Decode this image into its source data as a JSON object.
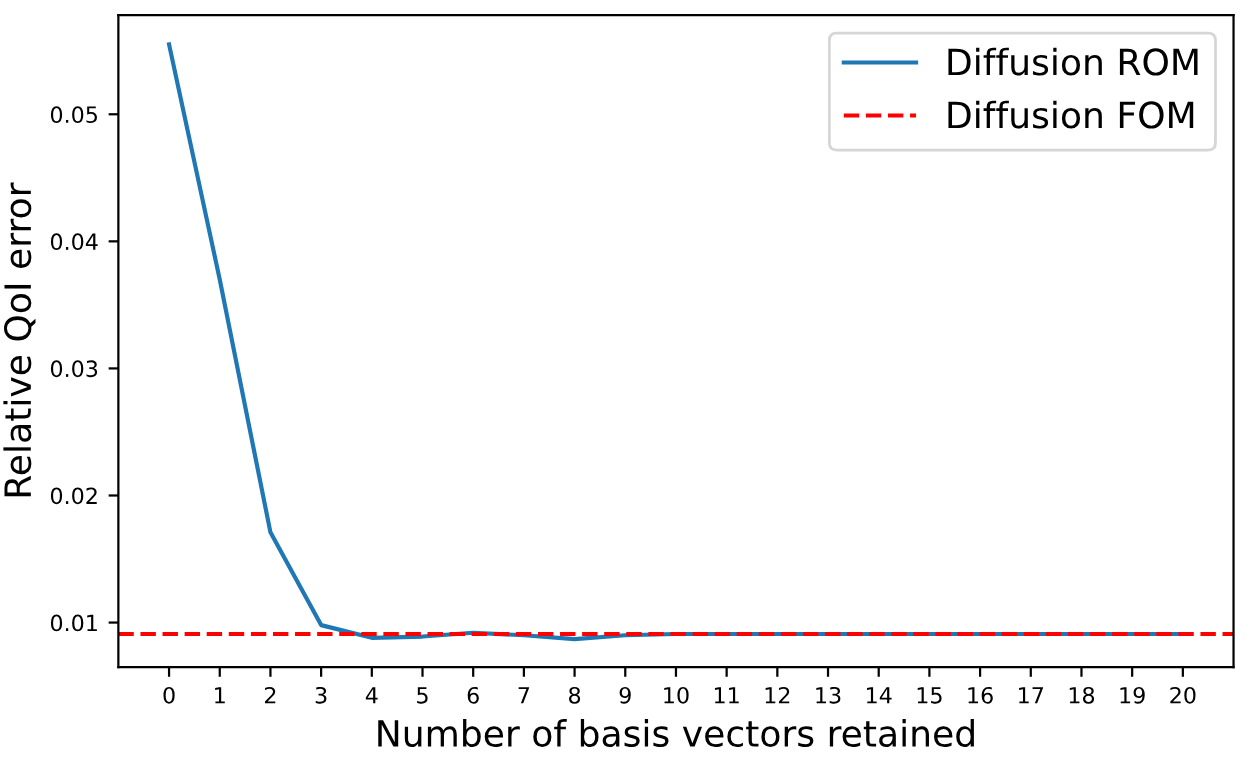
{
  "chart_data": {
    "type": "line",
    "xlabel": "Number of basis vectors retained",
    "ylabel": "Relative QoI error",
    "x": [
      0,
      1,
      2,
      3,
      4,
      5,
      6,
      7,
      8,
      9,
      10,
      11,
      12,
      13,
      14,
      15,
      16,
      17,
      18,
      19,
      20
    ],
    "series": [
      {
        "name": "Diffusion ROM",
        "color": "#1f77b4",
        "values": [
          0.0555,
          0.037,
          0.0171,
          0.0098,
          0.0088,
          0.0089,
          0.0092,
          0.009,
          0.0087,
          0.009,
          0.0091,
          0.0091,
          0.0091,
          0.0091,
          0.0091,
          0.0091,
          0.0091,
          0.0091,
          0.0091,
          0.0091,
          0.0091
        ]
      }
    ],
    "ref_lines": [
      {
        "axis": "y",
        "value": 0.0091,
        "label": "Diffusion FOM",
        "color": "#ff0000",
        "line_style": "dashed"
      }
    ],
    "xlim": [
      -1,
      21
    ],
    "ylim": [
      0.0065,
      0.0578
    ],
    "xticks": [
      0,
      1,
      2,
      3,
      4,
      5,
      6,
      7,
      8,
      9,
      10,
      11,
      12,
      13,
      14,
      15,
      16,
      17,
      18,
      19,
      20
    ],
    "yticks": [
      0.01,
      0.02,
      0.03,
      0.04,
      0.05
    ],
    "legend": "top right",
    "grid": false
  }
}
